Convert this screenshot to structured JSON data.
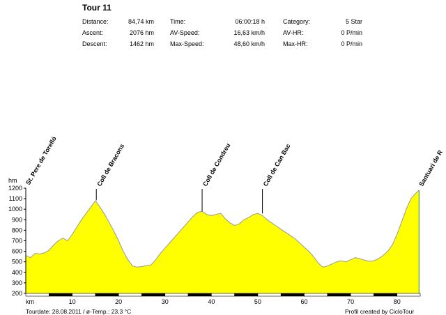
{
  "header": {
    "title": "Tour 11",
    "stats": [
      [
        {
          "label": "Distance:",
          "value": "84,74 km"
        },
        {
          "label": "Time:",
          "value": "06:00:18 h"
        },
        {
          "label": "Category:",
          "value": "5 Star"
        }
      ],
      [
        {
          "label": "Ascent:",
          "value": "2076 hm"
        },
        {
          "label": "AV-Speed:",
          "value": "16,63 km/h"
        },
        {
          "label": "AV-HR:",
          "value": "0 P/min"
        }
      ],
      [
        {
          "label": "Descent:",
          "value": "1462 hm"
        },
        {
          "label": "Max-Speed:",
          "value": "48,60 km/h"
        },
        {
          "label": "Max-HR:",
          "value": "0 P/min"
        }
      ]
    ]
  },
  "footer": {
    "left": "Tourdate: 28.08.2011  /  ø-Temp.: 23,3 °C",
    "right": "Profil created by CicloTour"
  },
  "colors": {
    "fill": "#ffff00",
    "stroke": "#999999",
    "marker": "#000000"
  },
  "chart_data": {
    "type": "area",
    "xlabel": "km",
    "ylabel": "hm",
    "xlim": [
      0,
      85
    ],
    "ylim": [
      200,
      1200
    ],
    "x_ticks": [
      10,
      20,
      30,
      40,
      50,
      60,
      70,
      80
    ],
    "y_ticks": [
      200,
      300,
      400,
      500,
      600,
      700,
      800,
      900,
      1000,
      1100,
      1200
    ],
    "series": [
      {
        "x": [
          0,
          1,
          2,
          3,
          4,
          5,
          6,
          7,
          8,
          9,
          10,
          11,
          12,
          13,
          14,
          15,
          16,
          17,
          18,
          19,
          20,
          21,
          22,
          23,
          24,
          25,
          26,
          27,
          28,
          29,
          30,
          31,
          32,
          33,
          34,
          35,
          36,
          37,
          38,
          39,
          40,
          41,
          42,
          43,
          44,
          45,
          46,
          47,
          48,
          49,
          50,
          51,
          52,
          53,
          54,
          55,
          56,
          57,
          58,
          59,
          60,
          61,
          62,
          63,
          64,
          65,
          66,
          67,
          68,
          69,
          70,
          71,
          72,
          73,
          74,
          75,
          76,
          77,
          78,
          79,
          80,
          81,
          82,
          83,
          84,
          84.74
        ],
        "y": [
          560,
          540,
          580,
          575,
          585,
          610,
          660,
          700,
          725,
          700,
          760,
          830,
          900,
          960,
          1020,
          1080,
          1020,
          950,
          870,
          790,
          700,
          600,
          520,
          460,
          450,
          455,
          465,
          470,
          520,
          580,
          630,
          680,
          730,
          780,
          830,
          880,
          930,
          970,
          980,
          950,
          940,
          950,
          960,
          910,
          870,
          845,
          860,
          900,
          920,
          950,
          960,
          940,
          900,
          870,
          840,
          810,
          780,
          750,
          720,
          680,
          640,
          600,
          550,
          490,
          450,
          460,
          480,
          500,
          510,
          500,
          520,
          540,
          530,
          515,
          505,
          510,
          530,
          560,
          600,
          660,
          760,
          880,
          1000,
          1100,
          1150,
          1180
        ]
      }
    ],
    "annotations": [
      {
        "label": "St. Pere de Torelló",
        "x": 0,
        "y": 560
      },
      {
        "label": "Coll de Bracons",
        "x": 15.2,
        "y": 1085
      },
      {
        "label": "Coll de Condreu",
        "x": 38,
        "y": 980
      },
      {
        "label": "Coll de Can Bac",
        "x": 51,
        "y": 960
      },
      {
        "label": "Santuari de R",
        "x": 84.74,
        "y": 1180
      }
    ]
  }
}
